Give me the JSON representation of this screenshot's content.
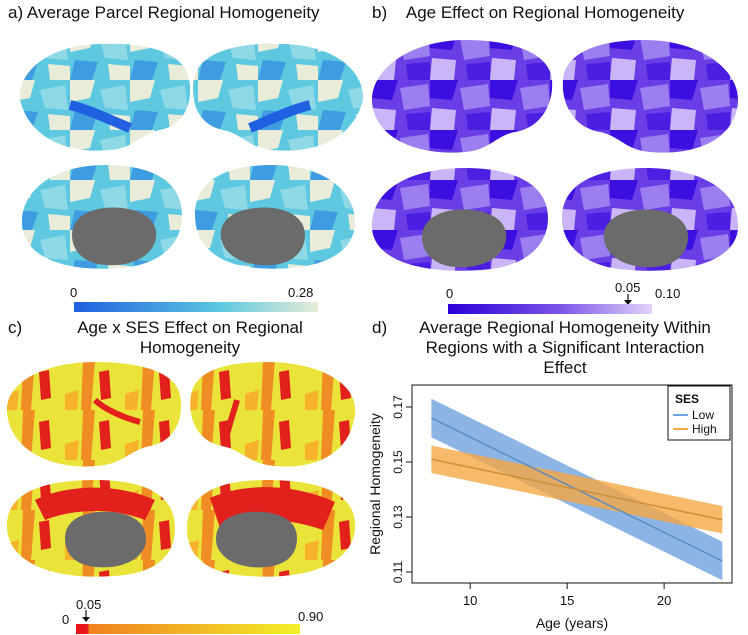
{
  "panels": {
    "a": {
      "label": "a)",
      "title": "Average Parcel Regional Homogeneity",
      "scale_min": "0",
      "scale_max": "0.28",
      "colors": {
        "low": "#1f5fe0",
        "mid": "#5ec8e0",
        "high": "#e8ecd8",
        "medial": "#6b6b6b"
      }
    },
    "b": {
      "label": "b)",
      "title": "Age Effect on Regional Homogeneity",
      "scale_min": "0",
      "scale_mark": "0.05",
      "scale_max": "0.10",
      "colors": {
        "low": "#2a00d8",
        "mid": "#7a55e8",
        "high": "#e2d4fa"
      }
    },
    "c": {
      "label": "c)",
      "title_line1": "Age x SES Effect on Regional",
      "title_line2": "Homogeneity",
      "scale_min": "0",
      "scale_mark": "0.05",
      "scale_max": "0.90",
      "colors": {
        "low": "#e8141a",
        "mid": "#f5a020",
        "high": "#f2f02a"
      }
    },
    "d": {
      "label": "d)",
      "title_line1": "Average Regional Homogeneity Within",
      "title_line2": "Regions with a Significant Interaction",
      "title_line3": "Effect"
    }
  },
  "chart_data": {
    "type": "line",
    "xlabel": "Age (years)",
    "ylabel": "Regional Homogeneity",
    "xlim": [
      7,
      23.5
    ],
    "ylim": [
      0.106,
      0.178
    ],
    "x_ticks": [
      10,
      15,
      20
    ],
    "y_ticks": [
      0.11,
      0.13,
      0.15,
      0.17
    ],
    "x_tick_labels": [
      "10",
      "15",
      "20"
    ],
    "y_tick_labels": [
      "0.11",
      "0.13",
      "0.15",
      "0.17"
    ],
    "legend_title": "SES",
    "legend_position": "top-right",
    "series": [
      {
        "name": "Low",
        "color": "#6fa3e0",
        "x": [
          8,
          23
        ],
        "y": [
          0.166,
          0.114
        ],
        "ci_low": [
          0.159,
          0.107
        ],
        "ci_high": [
          0.173,
          0.121
        ]
      },
      {
        "name": "High",
        "color": "#f5a845",
        "x": [
          8,
          23
        ],
        "y": [
          0.151,
          0.129
        ],
        "ci_low": [
          0.146,
          0.124
        ],
        "ci_high": [
          0.156,
          0.134
        ]
      }
    ]
  }
}
